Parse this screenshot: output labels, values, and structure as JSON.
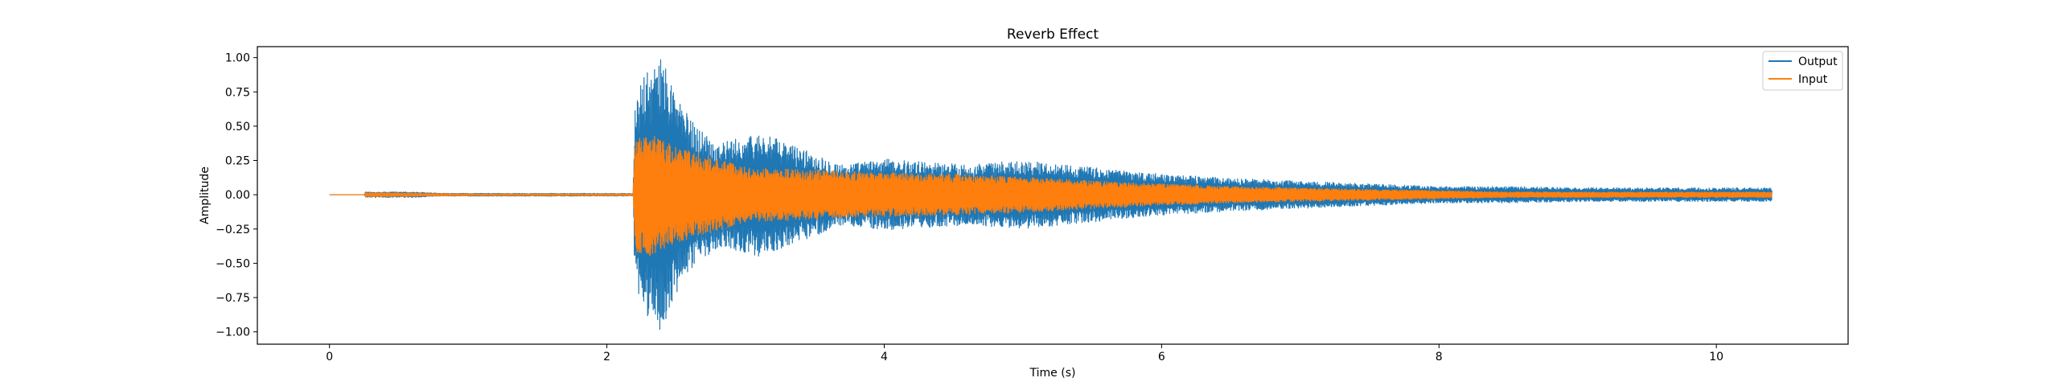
{
  "chart_data": {
    "type": "line",
    "title": "Reverb Effect",
    "xlabel": "Time (s)",
    "ylabel": "Amplitude",
    "xlim": [
      -0.52,
      10.95
    ],
    "ylim": [
      -1.09,
      1.08
    ],
    "xticks": [
      0,
      2,
      4,
      6,
      8,
      10
    ],
    "xtick_labels": [
      "0",
      "2",
      "4",
      "6",
      "8",
      "10"
    ],
    "yticks": [
      -1.0,
      -0.75,
      -0.5,
      -0.25,
      0.0,
      0.25,
      0.5,
      0.75,
      1.0
    ],
    "ytick_labels": [
      "−1.00",
      "−0.75",
      "−0.50",
      "−0.25",
      "0.00",
      "0.25",
      "0.50",
      "0.75",
      "1.00"
    ],
    "grid": false,
    "legend_position": "top-right",
    "series": [
      {
        "name": "Output",
        "color": "#1f77b4",
        "envelope": [
          [
            0.0,
            0.0
          ],
          [
            0.25,
            0.0
          ],
          [
            0.26,
            0.02
          ],
          [
            0.6,
            0.02
          ],
          [
            0.8,
            0.01
          ],
          [
            1.0,
            0.01
          ],
          [
            1.5,
            0.01
          ],
          [
            2.0,
            0.01
          ],
          [
            2.19,
            0.01
          ],
          [
            2.2,
            0.6
          ],
          [
            2.25,
            0.85
          ],
          [
            2.3,
            0.9
          ],
          [
            2.4,
            1.0
          ],
          [
            2.5,
            0.75
          ],
          [
            2.6,
            0.55
          ],
          [
            2.8,
            0.38
          ],
          [
            3.0,
            0.42
          ],
          [
            3.1,
            0.45
          ],
          [
            3.3,
            0.38
          ],
          [
            3.5,
            0.3
          ],
          [
            3.7,
            0.22
          ],
          [
            4.0,
            0.26
          ],
          [
            4.3,
            0.24
          ],
          [
            4.6,
            0.22
          ],
          [
            5.0,
            0.25
          ],
          [
            5.5,
            0.2
          ],
          [
            6.0,
            0.15
          ],
          [
            6.5,
            0.12
          ],
          [
            7.0,
            0.1
          ],
          [
            7.5,
            0.08
          ],
          [
            8.0,
            0.06
          ],
          [
            8.5,
            0.06
          ],
          [
            9.0,
            0.05
          ],
          [
            9.5,
            0.05
          ],
          [
            10.0,
            0.05
          ],
          [
            10.4,
            0.05
          ]
        ]
      },
      {
        "name": "Input",
        "color": "#ff7f0e",
        "envelope": [
          [
            0.0,
            0.0
          ],
          [
            0.25,
            0.0
          ],
          [
            0.26,
            0.015
          ],
          [
            0.6,
            0.012
          ],
          [
            0.8,
            0.008
          ],
          [
            1.0,
            0.006
          ],
          [
            2.0,
            0.006
          ],
          [
            2.19,
            0.006
          ],
          [
            2.2,
            0.42
          ],
          [
            2.3,
            0.45
          ],
          [
            2.5,
            0.35
          ],
          [
            2.8,
            0.26
          ],
          [
            3.0,
            0.2
          ],
          [
            3.5,
            0.18
          ],
          [
            4.0,
            0.16
          ],
          [
            4.5,
            0.15
          ],
          [
            5.0,
            0.13
          ],
          [
            5.5,
            0.1
          ],
          [
            6.0,
            0.08
          ],
          [
            6.5,
            0.06
          ],
          [
            7.0,
            0.05
          ],
          [
            7.5,
            0.04
          ],
          [
            8.0,
            0.03
          ],
          [
            8.5,
            0.02
          ],
          [
            9.0,
            0.02
          ],
          [
            10.0,
            0.02
          ],
          [
            10.4,
            0.02
          ]
        ]
      }
    ]
  }
}
